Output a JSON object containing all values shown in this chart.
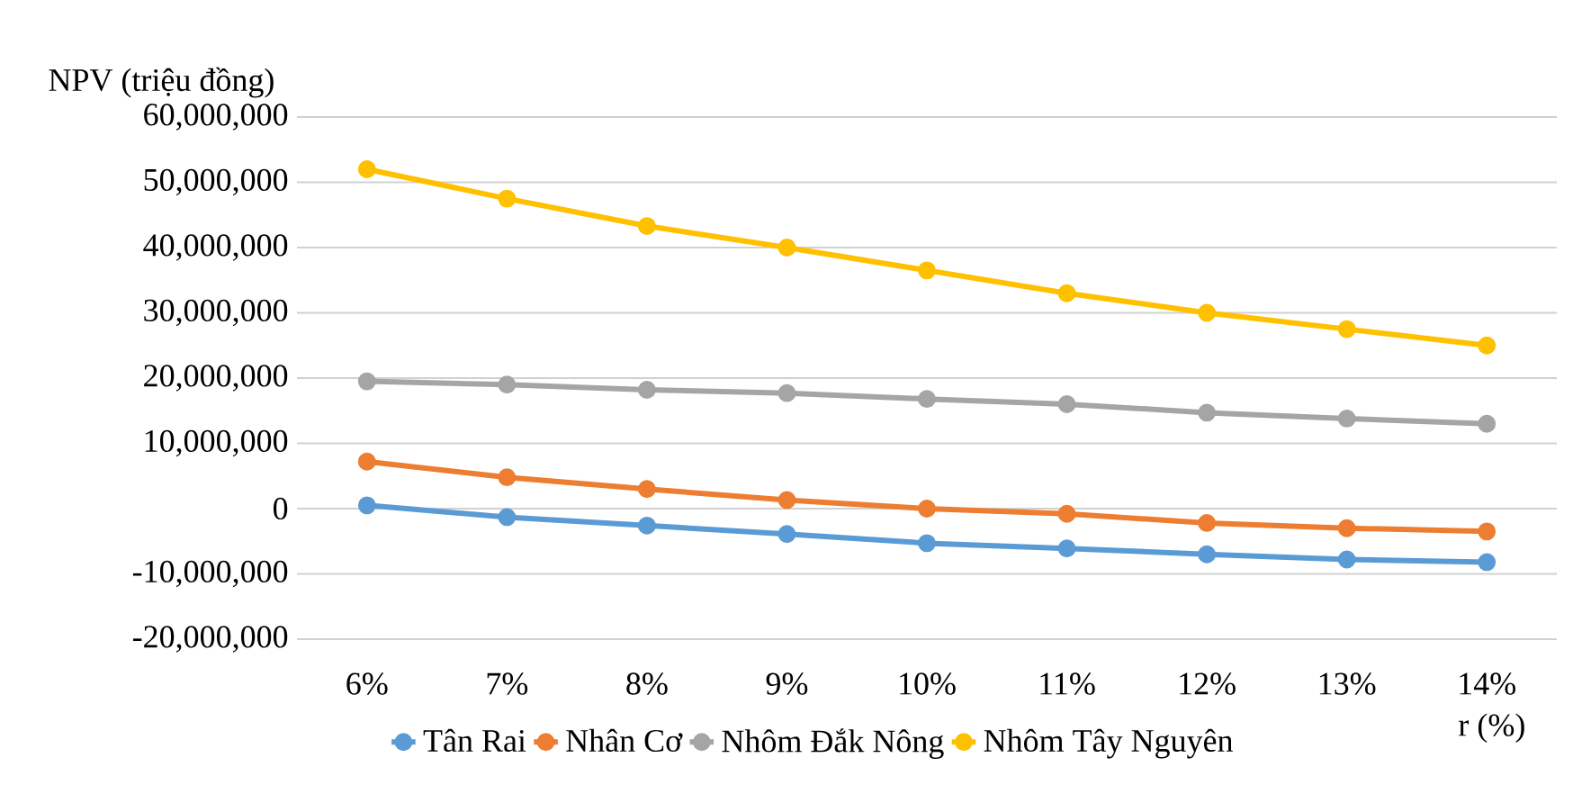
{
  "chart_data": {
    "type": "line",
    "ylabel": "NPV (triệu đồng)",
    "xlabel": "r (%)",
    "categories": [
      "6%",
      "7%",
      "8%",
      "9%",
      "10%",
      "11%",
      "12%",
      "13%",
      "14%"
    ],
    "series": [
      {
        "name": "Tân Rai",
        "color": "#5b9bd5",
        "values": [
          500000,
          -1300000,
          -2600000,
          -3900000,
          -5300000,
          -6100000,
          -7000000,
          -7800000,
          -8200000
        ]
      },
      {
        "name": "Nhân Cơ",
        "color": "#ed7d31",
        "values": [
          7200000,
          4800000,
          3000000,
          1300000,
          0,
          -800000,
          -2200000,
          -3000000,
          -3500000
        ]
      },
      {
        "name": "Nhôm Đắk Nông",
        "color": "#a5a5a5",
        "values": [
          19500000,
          19000000,
          18200000,
          17700000,
          16800000,
          16000000,
          14700000,
          13800000,
          13000000
        ]
      },
      {
        "name": "Nhôm Tây Nguyên",
        "color": "#ffc000",
        "values": [
          52000000,
          47500000,
          43300000,
          40000000,
          36500000,
          33000000,
          30000000,
          27500000,
          25000000
        ]
      }
    ],
    "ylim": [
      -20000000,
      60000000
    ],
    "yticks": [
      {
        "value": -20000000,
        "label": "-20,000,000"
      },
      {
        "value": -10000000,
        "label": "-10,000,000"
      },
      0,
      {
        "value": 10000000,
        "label": "10,000,000"
      },
      {
        "value": 20000000,
        "label": "20,000,000"
      },
      {
        "value": 30000000,
        "label": "30,000,000"
      },
      {
        "value": 40000000,
        "label": "40,000,000"
      },
      {
        "value": 50000000,
        "label": "50,000,000"
      },
      {
        "value": 60000000,
        "label": "60,000,000"
      }
    ],
    "grid": "y",
    "legend": "bottom",
    "marker": "circle",
    "line_style": "solid"
  }
}
